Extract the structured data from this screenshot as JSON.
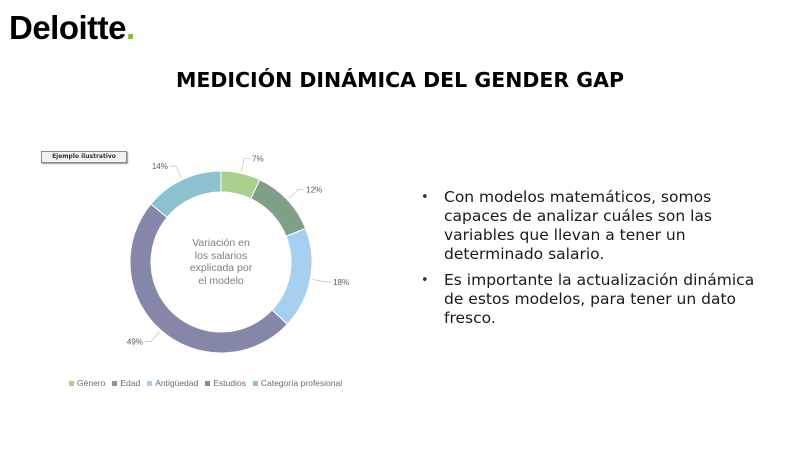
{
  "logo": {
    "text": "Deloitte",
    "dot": ".",
    "colors": {
      "text": "#000000",
      "dot": "#86bc25"
    }
  },
  "slide": {
    "title": "MEDICIÓN DINÁMICA DEL GENDER GAP"
  },
  "badge": {
    "label": "Ejemplo ilustrativo"
  },
  "chart_data": {
    "type": "pie",
    "donut": true,
    "center_label": "Variación en los salarios explicada por el modelo",
    "center_lines": [
      "Variación en",
      "los salarios",
      "explicada por",
      "el modelo"
    ],
    "legend_position": "bottom",
    "slices": [
      {
        "name": "Género",
        "value": 7,
        "label": "7%",
        "color": "#a9d18e"
      },
      {
        "name": "Edad",
        "value": 12,
        "label": "12%",
        "color": "#7f9f87"
      },
      {
        "name": "Antigüedad",
        "value": 18,
        "label": "18%",
        "color": "#a7cff0"
      },
      {
        "name": "Estudios",
        "value": 49,
        "label": "49%",
        "color": "#8487a8"
      },
      {
        "name": "Categoría profesional",
        "value": 14,
        "label": "14%",
        "color": "#8cc2d0"
      }
    ]
  },
  "bullets": [
    "Con modelos matemáticos, somos capaces de analizar cuáles son las variables que llevan a tener un determinado salario.",
    "Es importante la actualización dinámica de estos modelos, para tener un dato fresco."
  ],
  "bullet_glyph": "•"
}
